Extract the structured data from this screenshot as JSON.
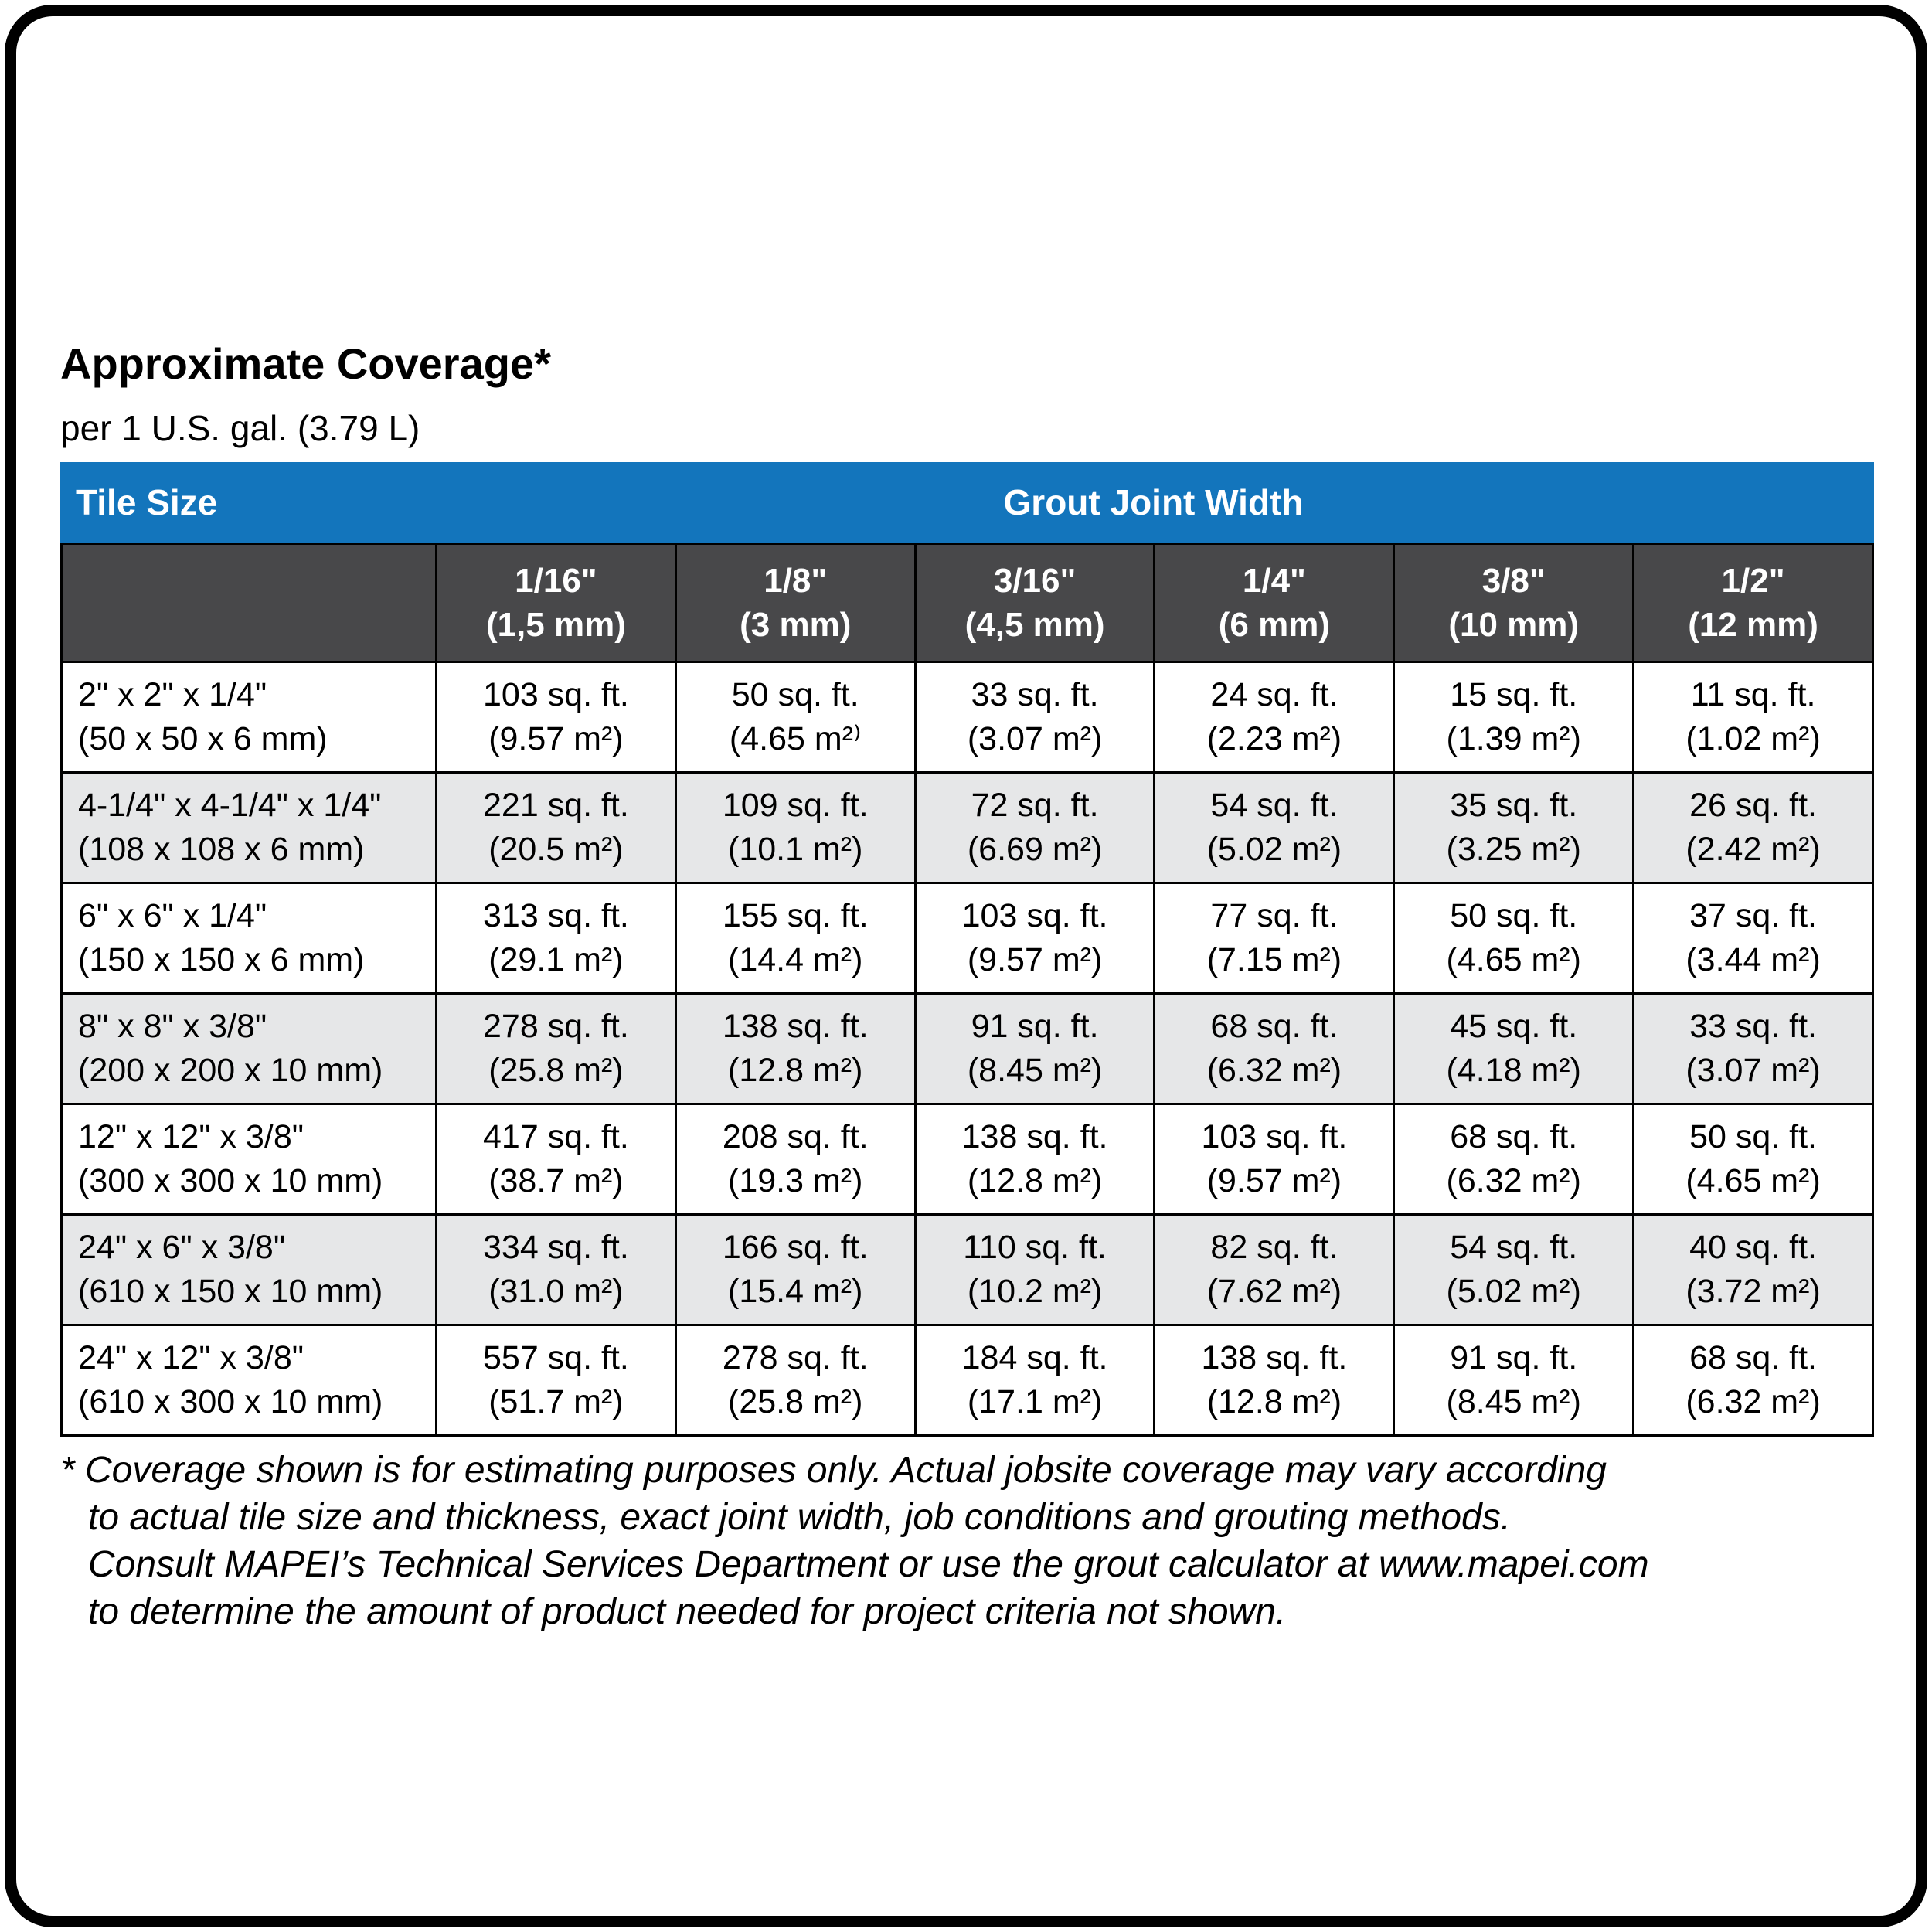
{
  "colors": {
    "header_blue": "#1375BC",
    "subheader_gray": "#48484A",
    "row_alt_gray": "#E6E7E8"
  },
  "page": {
    "title": "Approximate Coverage*",
    "subtitle": "per 1 U.S. gal. (3.79 L)"
  },
  "table": {
    "corner_label": "Tile Size",
    "group_header": "Grout Joint Width",
    "columns": [
      {
        "inch": "1/16\"",
        "mm": "(1,5 mm)"
      },
      {
        "inch": "1/8\"",
        "mm": "(3 mm)"
      },
      {
        "inch": "3/16\"",
        "mm": "(4,5 mm)"
      },
      {
        "inch": "1/4\"",
        "mm": "(6 mm)"
      },
      {
        "inch": "3/8\"",
        "mm": "(10 mm)"
      },
      {
        "inch": "1/2\"",
        "mm": "(12 mm)"
      }
    ],
    "rows": [
      {
        "size_in": "2\" x 2\" x 1/4\"",
        "size_mm": "(50 x 50 x 6 mm)",
        "cells": [
          {
            "ft": "103 sq. ft.",
            "m": "(9.57 m²)"
          },
          {
            "ft": "50 sq. ft.",
            "m": "(4.65 m²⁾"
          },
          {
            "ft": "33 sq. ft.",
            "m": "(3.07 m²)"
          },
          {
            "ft": "24 sq. ft.",
            "m": "(2.23 m²)"
          },
          {
            "ft": "15 sq. ft.",
            "m": "(1.39 m²)"
          },
          {
            "ft": "11 sq. ft.",
            "m": "(1.02 m²)"
          }
        ]
      },
      {
        "size_in": "4-1/4\" x 4-1/4\" x 1/4\"",
        "size_mm": "(108 x 108 x 6 mm)",
        "cells": [
          {
            "ft": "221 sq. ft.",
            "m": "(20.5 m²)"
          },
          {
            "ft": "109 sq. ft.",
            "m": "(10.1 m²)"
          },
          {
            "ft": "72 sq. ft.",
            "m": "(6.69 m²)"
          },
          {
            "ft": "54 sq. ft.",
            "m": "(5.02 m²)"
          },
          {
            "ft": "35 sq. ft.",
            "m": "(3.25 m²)"
          },
          {
            "ft": "26 sq. ft.",
            "m": "(2.42 m²)"
          }
        ]
      },
      {
        "size_in": "6\" x 6\" x 1/4\"",
        "size_mm": "(150 x 150 x 6 mm)",
        "cells": [
          {
            "ft": "313 sq. ft.",
            "m": "(29.1 m²)"
          },
          {
            "ft": "155 sq. ft.",
            "m": "(14.4 m²)"
          },
          {
            "ft": "103 sq. ft.",
            "m": "(9.57 m²)"
          },
          {
            "ft": "77 sq. ft.",
            "m": "(7.15 m²)"
          },
          {
            "ft": "50 sq. ft.",
            "m": "(4.65 m²)"
          },
          {
            "ft": "37 sq. ft.",
            "m": "(3.44 m²)"
          }
        ]
      },
      {
        "size_in": "8\" x 8\" x 3/8\"",
        "size_mm": "(200 x 200 x 10 mm)",
        "cells": [
          {
            "ft": "278 sq. ft.",
            "m": "(25.8 m²)"
          },
          {
            "ft": "138 sq. ft.",
            "m": "(12.8 m²)"
          },
          {
            "ft": "91 sq. ft.",
            "m": "(8.45 m²)"
          },
          {
            "ft": "68 sq. ft.",
            "m": "(6.32 m²)"
          },
          {
            "ft": "45 sq. ft.",
            "m": "(4.18 m²)"
          },
          {
            "ft": "33 sq. ft.",
            "m": "(3.07 m²)"
          }
        ]
      },
      {
        "size_in": "12\" x 12\" x 3/8\"",
        "size_mm": "(300 x 300 x 10 mm)",
        "cells": [
          {
            "ft": "417 sq. ft.",
            "m": "(38.7 m²)"
          },
          {
            "ft": "208 sq. ft.",
            "m": "(19.3 m²)"
          },
          {
            "ft": "138 sq. ft.",
            "m": "(12.8 m²)"
          },
          {
            "ft": "103 sq. ft.",
            "m": "(9.57 m²)"
          },
          {
            "ft": "68 sq. ft.",
            "m": "(6.32 m²)"
          },
          {
            "ft": "50 sq. ft.",
            "m": "(4.65 m²)"
          }
        ]
      },
      {
        "size_in": "24\" x 6\" x 3/8\"",
        "size_mm": "(610 x 150 x 10 mm)",
        "cells": [
          {
            "ft": "334 sq. ft.",
            "m": "(31.0 m²)"
          },
          {
            "ft": "166 sq. ft.",
            "m": "(15.4 m²)"
          },
          {
            "ft": "110 sq. ft.",
            "m": "(10.2 m²)"
          },
          {
            "ft": "82 sq. ft.",
            "m": "(7.62 m²)"
          },
          {
            "ft": "54 sq. ft.",
            "m": "(5.02 m²)"
          },
          {
            "ft": "40 sq. ft.",
            "m": "(3.72 m²)"
          }
        ]
      },
      {
        "size_in": "24\" x 12\" x 3/8\"",
        "size_mm": "(610 x 300 x 10 mm)",
        "cells": [
          {
            "ft": "557 sq. ft.",
            "m": "(51.7 m²)"
          },
          {
            "ft": "278 sq. ft.",
            "m": "(25.8 m²)"
          },
          {
            "ft": "184 sq. ft.",
            "m": "(17.1 m²)"
          },
          {
            "ft": "138 sq. ft.",
            "m": "(12.8 m²)"
          },
          {
            "ft": "91 sq. ft.",
            "m": "(8.45 m²)"
          },
          {
            "ft": "68 sq. ft.",
            "m": "(6.32 m²)"
          }
        ]
      }
    ]
  },
  "footnote": {
    "lines": [
      "* Coverage shown is for estimating purposes only. Actual jobsite coverage may vary according",
      "to actual tile size and thickness, exact joint width, job conditions and grouting methods.",
      "Consult MAPEI’s Technical Services Department or use the grout calculator at www.mapei.com",
      "to determine the amount of product needed for project criteria not shown."
    ]
  }
}
